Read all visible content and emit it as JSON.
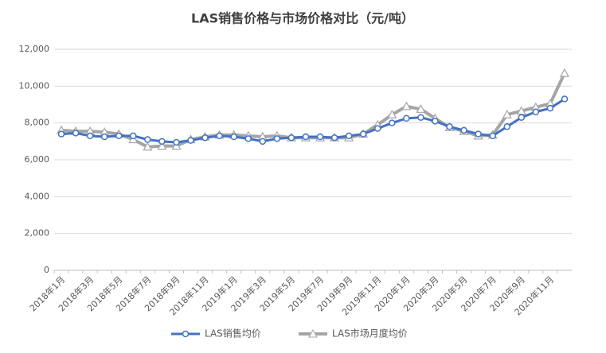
{
  "chart_data": {
    "type": "line",
    "title": "LAS销售价格与市场价格对比（元/吨）",
    "categories": [
      "2018年1月",
      null,
      "2018年3月",
      null,
      "2018年5月",
      null,
      "2018年7月",
      null,
      "2018年9月",
      null,
      "2018年11月",
      null,
      "2019年1月",
      null,
      "2019年3月",
      null,
      "2019年5月",
      null,
      "2019年7月",
      null,
      "2019年9月",
      null,
      "2019年11月",
      null,
      "2020年1月",
      null,
      "2020年3月",
      null,
      "2020年5月",
      null,
      "2020年7月",
      null,
      "2020年9月",
      null,
      "2020年11月",
      null
    ],
    "series": [
      {
        "name": "LAS销售均价",
        "color": "#4472c4",
        "marker": "circle",
        "values": [
          7400,
          7450,
          7300,
          7250,
          7300,
          7300,
          7100,
          7000,
          6950,
          7050,
          7200,
          7300,
          7250,
          7150,
          7000,
          7150,
          7200,
          7250,
          7250,
          7200,
          7300,
          7400,
          7700,
          8000,
          8250,
          8300,
          8100,
          7800,
          7600,
          7400,
          7300,
          7800,
          8300,
          8600,
          8800,
          9300
        ]
      },
      {
        "name": "LAS市场月度均价",
        "color": "#a5a5a5",
        "marker": "triangle",
        "values": [
          7600,
          7550,
          7550,
          7500,
          7400,
          7100,
          6700,
          6750,
          6750,
          7100,
          7250,
          7350,
          7350,
          7300,
          7250,
          7300,
          7200,
          7200,
          7200,
          7200,
          7200,
          7400,
          7900,
          8450,
          8900,
          8750,
          8250,
          7750,
          7550,
          7300,
          7350,
          8450,
          8650,
          8850,
          9050,
          10700
        ]
      }
    ],
    "ylim": [
      0,
      12000
    ],
    "yticks": [
      0,
      {
        "value": 2000,
        "label": "2,000"
      },
      {
        "value": 4000,
        "label": "4,000"
      },
      {
        "value": 6000,
        "label": "6,000"
      },
      {
        "value": 8000,
        "label": "8,000"
      },
      {
        "value": 10000,
        "label": "10,000"
      },
      {
        "value": 12000,
        "label": "12,000"
      }
    ],
    "grid": true
  }
}
